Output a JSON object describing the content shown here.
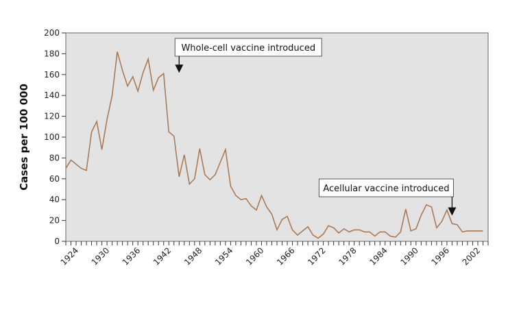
{
  "chart_data": {
    "type": "line",
    "title": "",
    "xlabel": "",
    "ylabel": "Cases per 100 000",
    "ylim": [
      0,
      200
    ],
    "xlim": [
      1922,
      2004
    ],
    "y_ticks": [
      "0",
      "20",
      "40",
      "60",
      "80",
      "100",
      "120",
      "140",
      "160",
      "180",
      "200"
    ],
    "x_tick_labels": [
      "1924",
      "1930",
      "1936",
      "1942",
      "1948",
      "1954",
      "1960",
      "1966",
      "1972",
      "1978",
      "1984",
      "1990",
      "1996",
      "2002"
    ],
    "grid": false,
    "plot_background": "#e3e3e3",
    "line_color": "#a87a55",
    "series": [
      {
        "x": [
          1922,
          1923,
          1924,
          1925,
          1926,
          1927,
          1928,
          1929,
          1930,
          1931,
          1932,
          1933,
          1934,
          1935,
          1936,
          1937,
          1938,
          1939,
          1940,
          1941,
          1942,
          1943,
          1944,
          1945,
          1946,
          1947,
          1948,
          1949,
          1950,
          1951,
          1952,
          1953,
          1954,
          1955,
          1956,
          1957,
          1958,
          1959,
          1960,
          1961,
          1962,
          1963,
          1964,
          1965,
          1966,
          1967,
          1968,
          1969,
          1970,
          1971,
          1972,
          1973,
          1974,
          1975,
          1976,
          1977,
          1978,
          1979,
          1980,
          1981,
          1982,
          1983,
          1984,
          1985,
          1986,
          1987,
          1988,
          1989,
          1990,
          1991,
          1992,
          1993,
          1994,
          1995,
          1996,
          1997,
          1998,
          1999,
          2000,
          2001,
          2002,
          2003
        ],
        "values": [
          70,
          78,
          74,
          70,
          68,
          105,
          115,
          88,
          117,
          140,
          182,
          164,
          149,
          158,
          144,
          162,
          175,
          145,
          157,
          161,
          105,
          101,
          62,
          83,
          55,
          60,
          89,
          64,
          59,
          64,
          76,
          88,
          53,
          44,
          40,
          41,
          34,
          30,
          44,
          33,
          26,
          11,
          21,
          24,
          11,
          6,
          10,
          14,
          6,
          3,
          7,
          15,
          13,
          8,
          12,
          9,
          11,
          11,
          9,
          9,
          5,
          9,
          9,
          5,
          4,
          9,
          31,
          10,
          12,
          25,
          35,
          33,
          13,
          19,
          30,
          17,
          16,
          9,
          10,
          10,
          10,
          10
        ]
      }
    ],
    "annotations": [
      {
        "text": "Whole-cell vaccine introduced",
        "x": 1944,
        "y": 161
      },
      {
        "text": "Acellular vaccine introduced",
        "x": 1997,
        "y": 24
      }
    ]
  }
}
